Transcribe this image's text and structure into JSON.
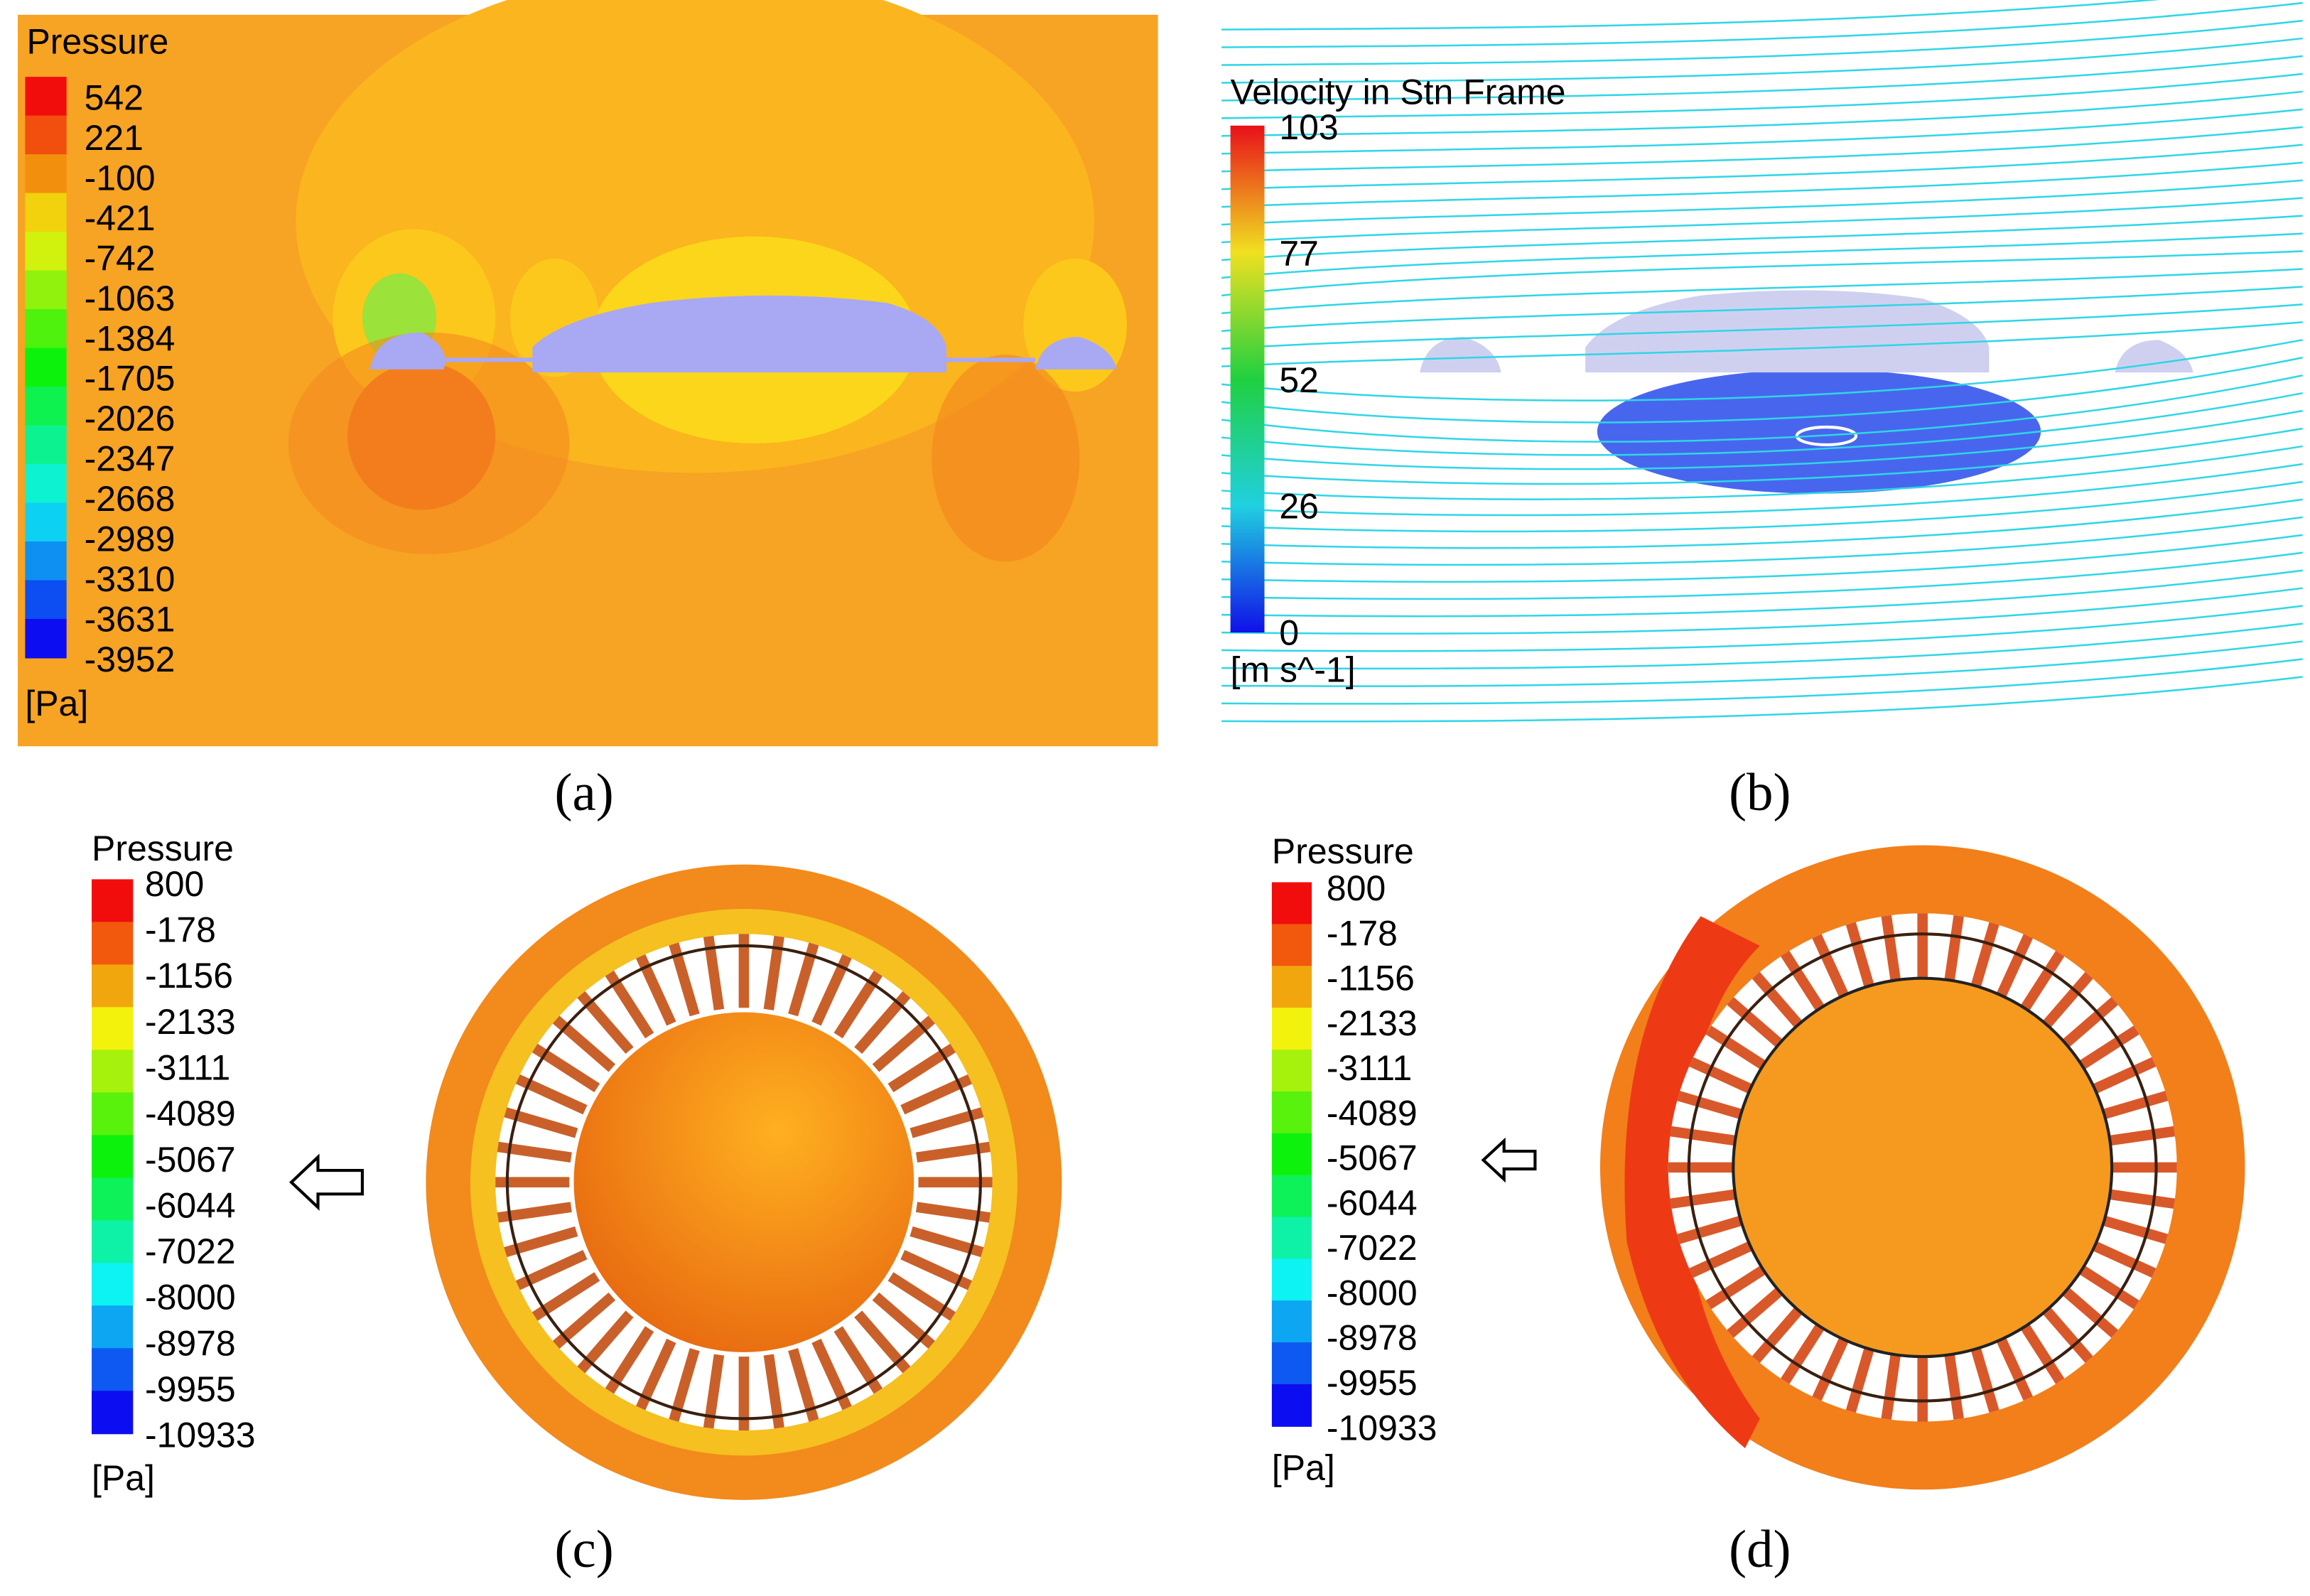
{
  "panels": [
    {
      "legend": {
        "title": "Pressure",
        "ticks": [
          542,
          221,
          -100,
          -421,
          -742,
          -1063,
          -1384,
          -1705,
          -2026,
          -2347,
          -2668,
          -2989,
          -3310,
          -3631,
          -3952
        ],
        "unit": "[Pa]"
      },
      "caption": "(a)"
    },
    {
      "legend": {
        "title": "Velocity in Stn Frame",
        "ticks": [
          103,
          77,
          52,
          26,
          0
        ],
        "unit": "[m s^-1]"
      },
      "caption": "(b)"
    },
    {
      "legend": {
        "title": "Pressure",
        "ticks": [
          800,
          -178,
          -1156,
          -2133,
          -3111,
          -4089,
          -5067,
          -6044,
          -7022,
          -8000,
          -8978,
          -9955,
          -10933
        ],
        "unit": "[Pa]"
      },
      "caption": "(c)"
    },
    {
      "legend": {
        "title": "Pressure",
        "ticks": [
          800,
          -178,
          -1156,
          -2133,
          -3111,
          -4089,
          -5067,
          -6044,
          -7022,
          -8000,
          -8978,
          -9955,
          -10933
        ],
        "unit": "[Pa]"
      },
      "caption": "(d)"
    }
  ]
}
